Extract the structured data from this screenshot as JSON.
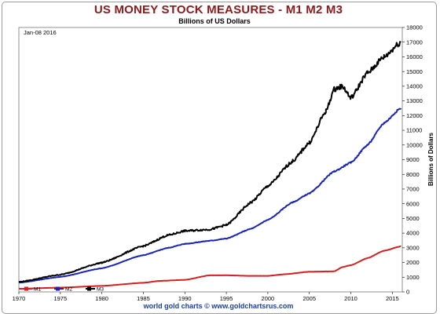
{
  "header": {
    "title": "US MONEY STOCK MEASURES - M1 M2 M3",
    "subtitle": "Billions of US Dollars"
  },
  "footer": {
    "credit": "world gold charts © www.goldchartsrus.com"
  },
  "chart_data": {
    "type": "line",
    "title": "US MONEY STOCK MEASURES - M1 M2 M3",
    "subtitle": "Billions of US Dollars",
    "date_label": "Jan-08 2016",
    "ylabel": "Billions of Dollars",
    "xlabel": "",
    "xlim": [
      1970,
      2016.2
    ],
    "ylim": [
      0,
      18000
    ],
    "x_ticks": [
      1970,
      1975,
      1980,
      1985,
      1990,
      1995,
      2000,
      2005,
      2010,
      2015
    ],
    "y_ticks": [
      0,
      1000,
      2000,
      3000,
      4000,
      5000,
      6000,
      7000,
      8000,
      9000,
      10000,
      11000,
      12000,
      13000,
      14000,
      15000,
      16000,
      17000,
      18000
    ],
    "y_axis_side": "right",
    "grid": false,
    "legend_position": "bottom-left",
    "series": [
      {
        "name": "M1",
        "color": "#d42020",
        "x": [
          1970,
          1975,
          1980,
          1985,
          1987,
          1990,
          1993,
          1995,
          1998,
          2000,
          2002,
          2005,
          2008,
          2009,
          2010,
          2012,
          2014,
          2016
        ],
        "y": [
          215,
          290,
          410,
          620,
          750,
          820,
          1130,
          1130,
          1090,
          1090,
          1200,
          1370,
          1400,
          1690,
          1820,
          2300,
          2800,
          3100
        ]
      },
      {
        "name": "M2",
        "color": "#1b24b8",
        "x": [
          1970,
          1975,
          1980,
          1985,
          1988,
          1990,
          1993,
          1995,
          1998,
          2000,
          2003,
          2005,
          2008,
          2010,
          2012,
          2014,
          2016
        ],
        "y": [
          630,
          1020,
          1610,
          2500,
          3000,
          3270,
          3480,
          3630,
          4300,
          4900,
          6100,
          6700,
          8200,
          8800,
          10000,
          11500,
          12500
        ]
      },
      {
        "name": "M3",
        "color": "#000000",
        "x": [
          1970,
          1975,
          1980,
          1985,
          1988,
          1990,
          1993,
          1995,
          1998,
          2000,
          2003,
          2005,
          2007,
          2008,
          2009,
          2010,
          2012,
          2014,
          2016
        ],
        "y": [
          680,
          1170,
          1990,
          3120,
          3860,
          4150,
          4250,
          4550,
          6100,
          7200,
          8900,
          10150,
          12300,
          13800,
          14000,
          13200,
          14900,
          16000,
          17000
        ]
      }
    ]
  }
}
